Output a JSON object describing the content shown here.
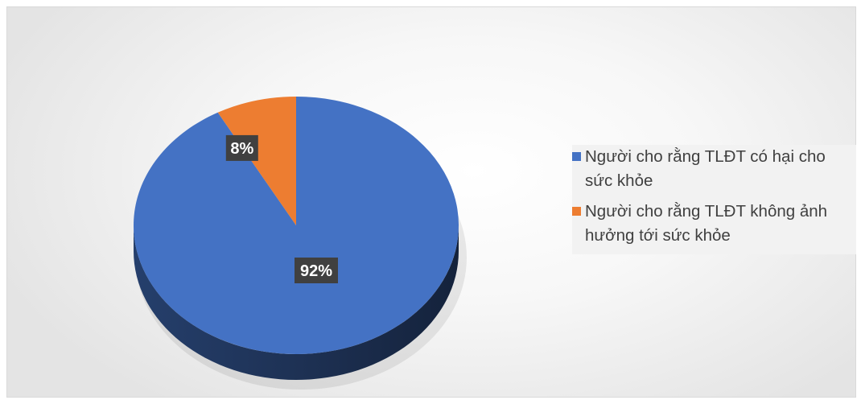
{
  "chart_data": {
    "type": "pie",
    "style": "3d",
    "categories": [
      "Người cho rằng TLĐT có hại cho sức khỏe",
      "Người cho rằng TLĐT không ảnh hưởng tới sức khỏe"
    ],
    "values": [
      92,
      8
    ],
    "data_labels": [
      "92%",
      "8%"
    ],
    "colors": [
      "#4472c4",
      "#ed7d31"
    ],
    "legend_position": "right"
  }
}
